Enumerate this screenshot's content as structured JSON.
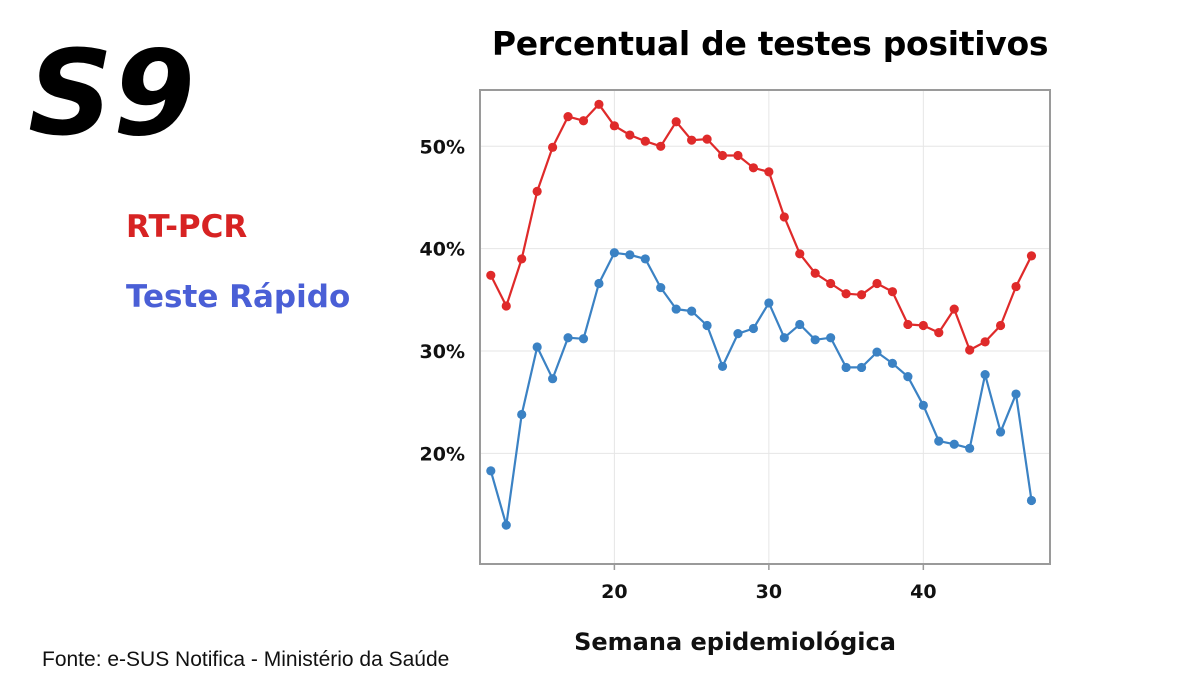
{
  "logo": {
    "text": "S9"
  },
  "legend": [
    {
      "label": "RT-PCR",
      "color": "#d72323"
    },
    {
      "label": "Teste Rápido",
      "color": "#4a5fd6"
    }
  ],
  "source": "Fonte: e-SUS Notifica - Ministério da Saúde",
  "chart_data": {
    "type": "line",
    "title": "Percentual de testes positivos",
    "xlabel": "Semana epidemiológica",
    "ylabel": "",
    "xlim": [
      11.3,
      48.2
    ],
    "ylim": [
      0.092,
      0.555
    ],
    "xticks": [
      20,
      30,
      40
    ],
    "xtick_labels": [
      "20",
      "30",
      "40"
    ],
    "yticks": [
      0.2,
      0.3,
      0.4,
      0.5
    ],
    "ytick_labels": [
      "20%",
      "30%",
      "40%",
      "50%"
    ],
    "grid": true,
    "legend_placement": "left-outside",
    "x": [
      12,
      13,
      14,
      15,
      16,
      17,
      18,
      19,
      20,
      21,
      22,
      23,
      24,
      25,
      26,
      27,
      28,
      29,
      30,
      31,
      32,
      33,
      34,
      35,
      36,
      37,
      38,
      39,
      40,
      41,
      42,
      43,
      44,
      45,
      46,
      47
    ],
    "series": [
      {
        "name": "RT-PCR",
        "color": "#df2a2a",
        "values": [
          0.374,
          0.344,
          0.39,
          0.456,
          0.499,
          0.529,
          0.525,
          0.541,
          0.52,
          0.511,
          0.505,
          0.5,
          0.524,
          0.506,
          0.507,
          0.491,
          0.491,
          0.479,
          0.475,
          0.431,
          0.395,
          0.376,
          0.366,
          0.356,
          0.355,
          0.366,
          0.358,
          0.326,
          0.325,
          0.318,
          0.341,
          0.301,
          0.309,
          0.325,
          0.363,
          0.393
        ]
      },
      {
        "name": "Teste Rápido",
        "color": "#3b82c4",
        "values": [
          0.183,
          0.13,
          0.238,
          0.304,
          0.273,
          0.313,
          0.312,
          0.366,
          0.396,
          0.394,
          0.39,
          0.362,
          0.341,
          0.339,
          0.325,
          0.285,
          0.317,
          0.322,
          0.347,
          0.313,
          0.326,
          0.311,
          0.313,
          0.284,
          0.284,
          0.299,
          0.288,
          0.275,
          0.247,
          0.212,
          0.209,
          0.205,
          0.277,
          0.221,
          0.258,
          0.154
        ]
      }
    ]
  }
}
